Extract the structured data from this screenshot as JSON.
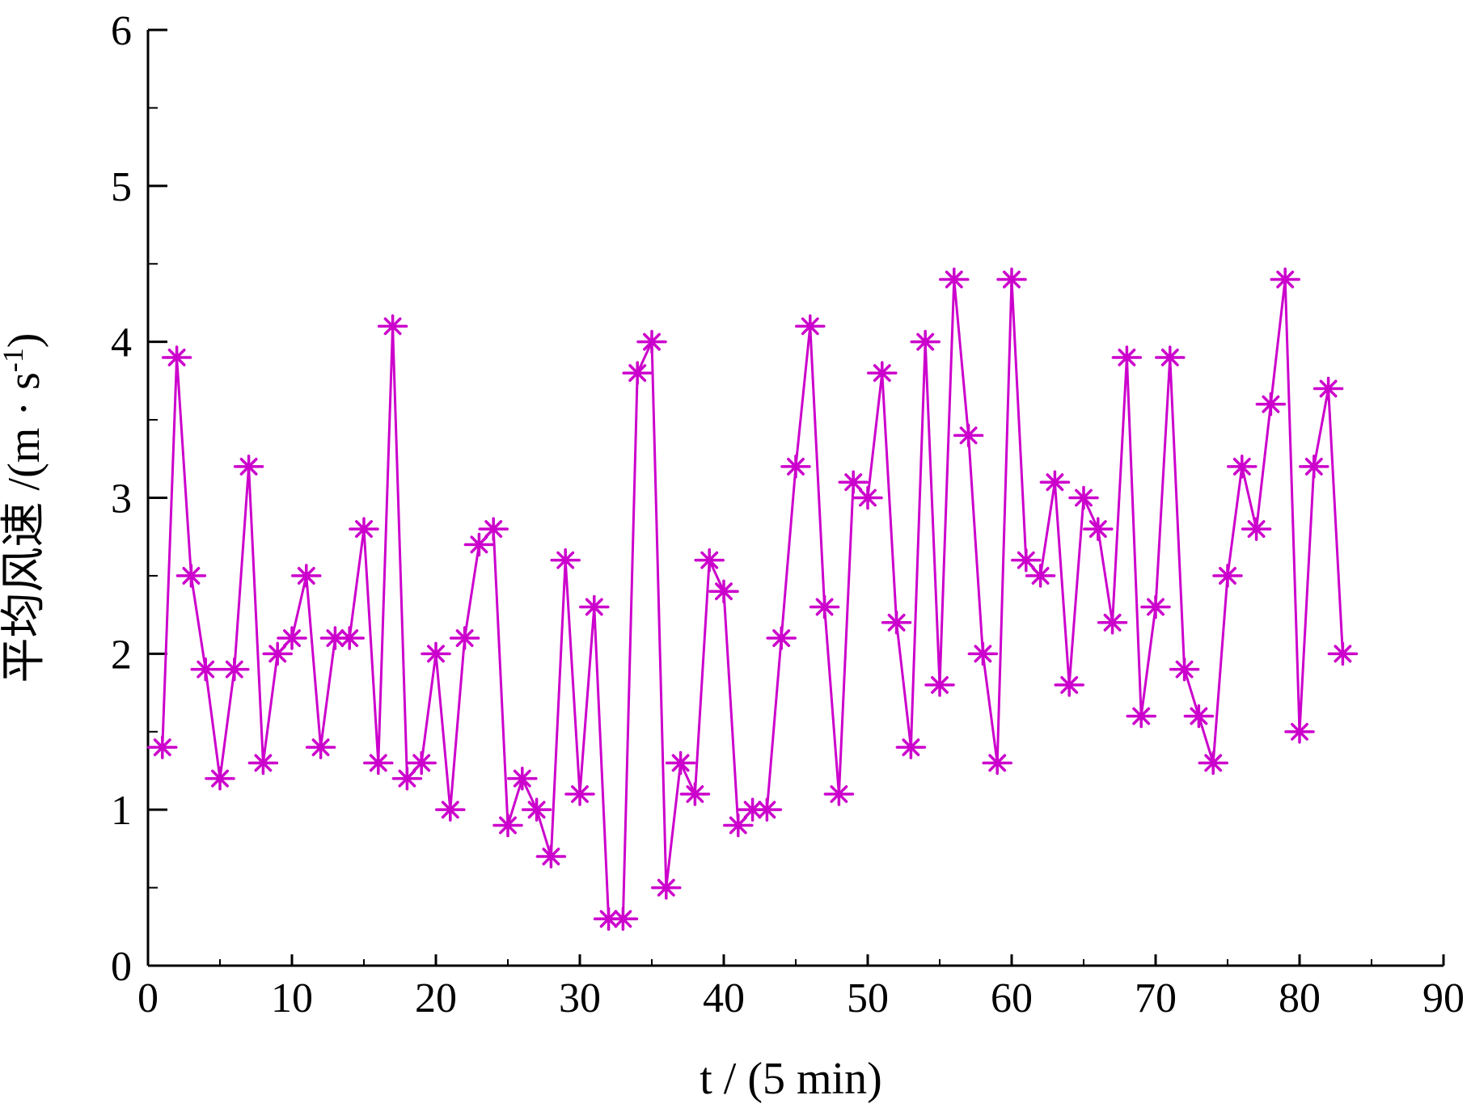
{
  "chart_data": {
    "type": "line",
    "xlabel": "t / (5 min)",
    "ylabel": "平均风速 /(m · s",
    "ylabel_sup": "-1",
    "ylabel_close": ")",
    "xlim": [
      0,
      90
    ],
    "ylim": [
      0,
      6
    ],
    "x_ticks": [
      "0",
      "10",
      "20",
      "30",
      "40",
      "50",
      "60",
      "70",
      "80",
      "90"
    ],
    "y_ticks": [
      "0",
      "1",
      "2",
      "3",
      "4",
      "5",
      "6"
    ],
    "grid": false,
    "legend": "none",
    "line_color": "#cc00cc",
    "marker": "asterisk",
    "series": [
      {
        "x": [
          1,
          2,
          3,
          4,
          5,
          6,
          7,
          8,
          9,
          10,
          11,
          12,
          13,
          14,
          15,
          16,
          17,
          18,
          19,
          20,
          21,
          22,
          23,
          24,
          25,
          26,
          27,
          28,
          29,
          30,
          31,
          32,
          33,
          34,
          35,
          36,
          37,
          38,
          39,
          40,
          41,
          42,
          43,
          44,
          45,
          46,
          47,
          48,
          49,
          50,
          51,
          52,
          53,
          54,
          55,
          56,
          57,
          58,
          59,
          60,
          61,
          62,
          63,
          64,
          65,
          66,
          67,
          68,
          69,
          70,
          71,
          72,
          73,
          74,
          75,
          76,
          77,
          78,
          79,
          80,
          81,
          82,
          83
        ],
        "values": [
          1.4,
          3.9,
          2.5,
          1.9,
          1.2,
          1.9,
          3.2,
          1.3,
          2.0,
          2.1,
          2.5,
          1.4,
          2.1,
          2.1,
          2.8,
          1.3,
          4.1,
          1.2,
          1.3,
          2.0,
          1.0,
          2.1,
          2.7,
          2.8,
          0.9,
          1.2,
          1.0,
          0.7,
          2.6,
          1.1,
          2.3,
          0.3,
          0.3,
          3.8,
          4.0,
          0.5,
          1.3,
          1.1,
          2.6,
          2.4,
          0.9,
          1.0,
          1.0,
          2.1,
          3.2,
          4.1,
          2.3,
          1.1,
          3.1,
          3.0,
          3.8,
          2.2,
          1.4,
          4.0,
          1.8,
          4.4,
          3.4,
          2.0,
          1.3,
          4.4,
          2.6,
          2.5,
          3.1,
          1.8,
          3.0,
          2.8,
          2.2,
          3.9,
          1.6,
          2.3,
          3.9,
          1.9,
          1.6,
          1.3,
          2.5,
          3.2,
          2.8,
          3.6,
          4.4,
          1.5,
          3.2,
          3.7,
          2.0
        ]
      }
    ]
  }
}
